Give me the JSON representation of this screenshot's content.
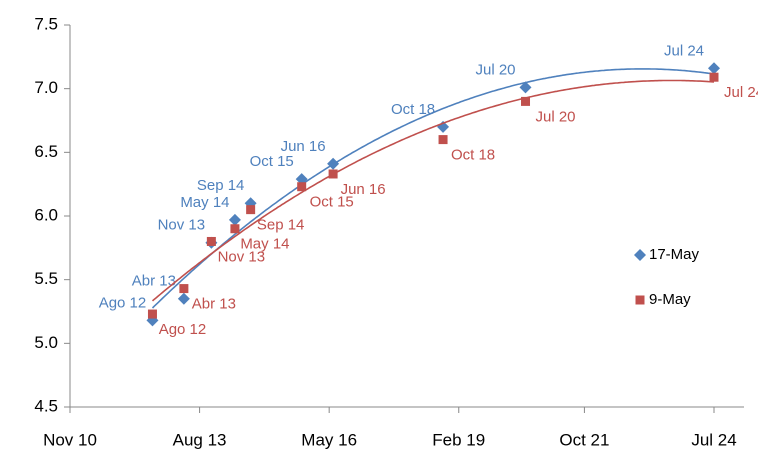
{
  "chart_data": {
    "type": "scatter",
    "xlim": [
      "2010-11",
      "2024-07"
    ],
    "xticks": [
      {
        "value": "2010-11",
        "label": "Nov 10"
      },
      {
        "value": "2013-08",
        "label": "Aug 13"
      },
      {
        "value": "2016-05",
        "label": "May 16"
      },
      {
        "value": "2019-02",
        "label": "Feb 19"
      },
      {
        "value": "2021-10",
        "label": "Oct 21"
      },
      {
        "value": "2024-07",
        "label": "Jul 24"
      }
    ],
    "ylim": [
      4.5,
      7.5
    ],
    "yticks": [
      4.5,
      {
        "value": 5,
        "label": "5.0"
      },
      5.5,
      {
        "value": 6,
        "label": "6.0"
      },
      6.5,
      {
        "value": 7,
        "label": "7.0"
      },
      7.5
    ],
    "grid": false,
    "legend": "right",
    "trendline": "polynomial",
    "x": [
      "2012-08",
      "2013-04",
      "2013-11",
      "2014-05",
      "2014-09",
      "2015-10",
      "2016-06",
      "2018-10",
      "2020-07",
      "2024-07"
    ],
    "series": [
      {
        "name": "17-May",
        "color": "#4f81bd",
        "marker": "diamond",
        "values": [
          5.18,
          5.35,
          5.79,
          5.97,
          6.1,
          6.29,
          6.41,
          6.7,
          7.01,
          7.16
        ],
        "labels": [
          "Ago 12",
          "Abr 13",
          "Nov 13",
          "May 14",
          "Sep 14",
          "Oct 15",
          "Jun 16",
          "Oct 18",
          "Jul 20",
          "Jul 24"
        ]
      },
      {
        "name": "9-May",
        "color": "#c0504d",
        "marker": "square",
        "values": [
          5.23,
          5.43,
          5.8,
          5.9,
          6.05,
          6.23,
          6.33,
          6.6,
          6.9,
          7.09
        ],
        "labels": [
          "Ago 12",
          "Abr 13",
          "Nov 13",
          "May 14",
          "Sep 14",
          "Oct 15",
          "Jun 16",
          "Oct 18",
          "Jul 20",
          "Jul 24"
        ]
      }
    ]
  }
}
